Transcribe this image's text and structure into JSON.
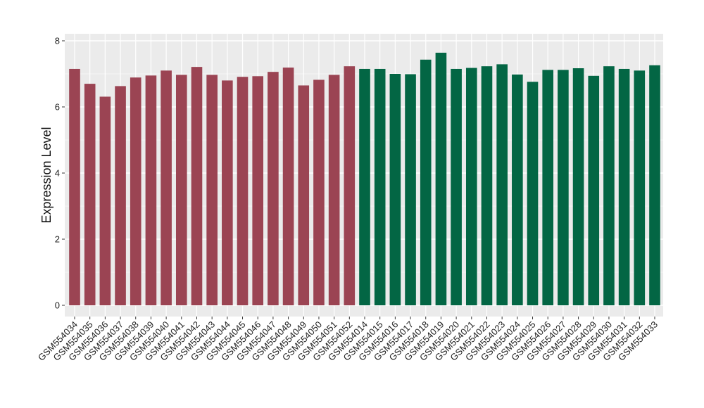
{
  "chart_data": {
    "type": "bar",
    "title": "",
    "xlabel": "",
    "ylabel": "Expression Level",
    "ylim": [
      0,
      8
    ],
    "yticks": [
      0,
      2,
      4,
      6,
      8
    ],
    "grid": true,
    "panel_background": "#EBEBEB",
    "grid_color": "#FFFFFF",
    "categories": [
      "GSM554034",
      "GSM554035",
      "GSM554036",
      "GSM554037",
      "GSM554038",
      "GSM554039",
      "GSM554040",
      "GSM554041",
      "GSM554042",
      "GSM554043",
      "GSM554044",
      "GSM554045",
      "GSM554046",
      "GSM554047",
      "GSM554048",
      "GSM554049",
      "GSM554050",
      "GSM554051",
      "GSM554052",
      "GSM554014",
      "GSM554015",
      "GSM554016",
      "GSM554017",
      "GSM554018",
      "GSM554019",
      "GSM554020",
      "GSM554021",
      "GSM554022",
      "GSM554023",
      "GSM554024",
      "GSM554025",
      "GSM554026",
      "GSM554027",
      "GSM554028",
      "GSM554029",
      "GSM554030",
      "GSM554031",
      "GSM554032",
      "GSM554033"
    ],
    "values": [
      7.15,
      6.7,
      6.31,
      6.63,
      6.89,
      6.95,
      7.1,
      6.97,
      7.21,
      6.97,
      6.8,
      6.91,
      6.93,
      7.06,
      7.19,
      6.65,
      6.82,
      6.97,
      7.23,
      7.15,
      7.15,
      7.0,
      6.99,
      7.43,
      7.64,
      7.15,
      7.18,
      7.23,
      7.29,
      6.98,
      6.76,
      7.12,
      7.12,
      7.17,
      6.94,
      7.23,
      7.15,
      7.1,
      7.26
    ],
    "groups": [
      {
        "color": "#9B4453",
        "count": 19
      },
      {
        "color": "#036644",
        "count": 20
      }
    ]
  }
}
